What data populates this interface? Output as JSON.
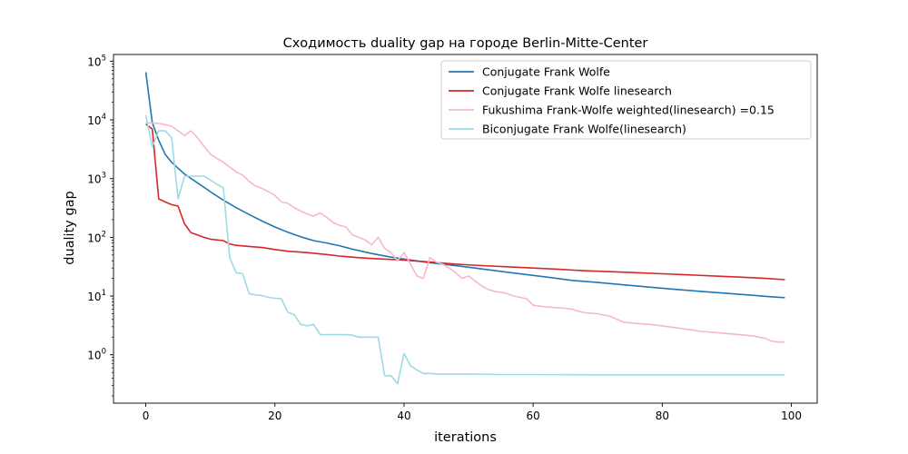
{
  "chart_data": {
    "type": "line",
    "title": "Сходимость duality gap на городе Berlin-Mitte-Center",
    "xlabel": "iterations",
    "ylabel": "duality gap",
    "x_scale": "linear",
    "y_scale": "log",
    "xlim": [
      -5,
      104
    ],
    "ylim": [
      0.15,
      130000
    ],
    "x_ticks": [
      0,
      20,
      40,
      60,
      80,
      100
    ],
    "x_tick_labels": [
      "0",
      "20",
      "40",
      "60",
      "80",
      "100"
    ],
    "y_ticks": [
      1,
      10,
      100,
      1000,
      10000,
      100000
    ],
    "y_tick_labels": [
      "10^0",
      "10^1",
      "10^2",
      "10^3",
      "10^4",
      "10^5"
    ],
    "grid": false,
    "legend_position": "top-right",
    "series": [
      {
        "name": "Conjugate Frank Wolfe",
        "color": "#1f77b4",
        "x": [
          0,
          1,
          2,
          3,
          4,
          5,
          6,
          8,
          10,
          12,
          14,
          16,
          18,
          20,
          22,
          24,
          26,
          28,
          30,
          32,
          35,
          38,
          41,
          44,
          47,
          50,
          53,
          56,
          60,
          63,
          66,
          70,
          74,
          78,
          82,
          86,
          90,
          94,
          97,
          99
        ],
        "y": [
          65000,
          9000,
          4500,
          2600,
          1900,
          1500,
          1200,
          850,
          600,
          430,
          320,
          245,
          190,
          150,
          122,
          102,
          88,
          80,
          72,
          63,
          53,
          46,
          41,
          37,
          34,
          31,
          28,
          25.5,
          22.5,
          20.5,
          18.5,
          17,
          15.5,
          14.2,
          13,
          12,
          11.1,
          10.3,
          9.7,
          9.4
        ]
      },
      {
        "name": "Conjugate Frank Wolfe linesearch",
        "color": "#d62728",
        "x": [
          0,
          1,
          2,
          3,
          4,
          5,
          6,
          7,
          8,
          9,
          10,
          12,
          13,
          14,
          16,
          18,
          20,
          22,
          25,
          28,
          30,
          33,
          36,
          40,
          44,
          48,
          52,
          56,
          60,
          64,
          68,
          72,
          76,
          80,
          84,
          88,
          92,
          96,
          99
        ],
        "y": [
          8500,
          7000,
          450,
          400,
          360,
          340,
          170,
          120,
          110,
          100,
          93,
          88,
          77,
          73,
          70,
          67,
          62,
          58,
          55,
          51,
          48,
          45,
          43,
          41,
          38,
          35,
          33,
          31.5,
          30,
          28.5,
          27,
          26,
          25,
          24,
          23,
          22,
          21,
          20,
          19
        ]
      },
      {
        "name": "Fukushima Frank-Wolfe weighted(linesearch) =0.15",
        "color": "#f7b6d2",
        "x": [
          0,
          1,
          2,
          3,
          4,
          5,
          6,
          7,
          8,
          9,
          10,
          12,
          14,
          15,
          16,
          17,
          18,
          19,
          20,
          21,
          22,
          23,
          24,
          25,
          26,
          27,
          28,
          29,
          30,
          31,
          32,
          33,
          34,
          35,
          36,
          37,
          38,
          39,
          40,
          41,
          42,
          43,
          44,
          45,
          46,
          47,
          48,
          49,
          50,
          51,
          52,
          53,
          54,
          55,
          56,
          57,
          58,
          59,
          60,
          62,
          64,
          65,
          66,
          67,
          68,
          70,
          72,
          73,
          74,
          76,
          78,
          80,
          82,
          84,
          86,
          88,
          90,
          92,
          94,
          95,
          96,
          97,
          98,
          99
        ],
        "y": [
          9000,
          8800,
          8700,
          8300,
          7800,
          6500,
          5400,
          6500,
          5000,
          3600,
          2600,
          1900,
          1300,
          1150,
          900,
          750,
          680,
          600,
          520,
          400,
          380,
          320,
          280,
          250,
          230,
          260,
          220,
          180,
          160,
          150,
          110,
          100,
          90,
          75,
          100,
          65,
          55,
          40,
          55,
          35,
          22,
          20,
          45,
          38,
          35,
          30,
          25,
          20,
          22,
          18,
          15,
          13,
          12,
          11.5,
          11,
          10,
          9.5,
          9,
          7,
          6.5,
          6.3,
          6.2,
          6,
          5.5,
          5.2,
          5,
          4.5,
          4,
          3.6,
          3.4,
          3.3,
          3.1,
          2.9,
          2.7,
          2.5,
          2.4,
          2.3,
          2.2,
          2.1,
          2,
          1.9,
          1.7,
          1.65,
          1.65
        ]
      },
      {
        "name": "Biconjugate Frank Wolfe(linesearch)",
        "color": "#9edae5",
        "x": [
          0,
          1,
          2,
          3,
          4,
          5,
          6,
          7,
          8,
          9,
          10,
          11,
          12,
          13,
          14,
          15,
          16,
          17,
          18,
          19,
          20,
          21,
          22,
          23,
          24,
          25,
          26,
          27,
          28,
          29,
          30,
          31,
          32,
          33,
          34,
          35,
          36,
          37,
          38,
          39,
          40,
          41,
          42,
          43,
          44,
          45,
          46,
          48,
          50,
          55,
          60,
          70,
          80,
          90,
          99
        ],
        "y": [
          12000,
          3500,
          6500,
          6500,
          5000,
          450,
          1100,
          1100,
          1100,
          1100,
          950,
          800,
          700,
          45,
          25,
          24,
          11,
          10.5,
          10.2,
          9.5,
          9.2,
          9,
          5.3,
          4.8,
          3.3,
          3.1,
          3.3,
          2.2,
          2.2,
          2.2,
          2.2,
          2.2,
          2.15,
          2.0,
          2.0,
          2.0,
          2.0,
          0.44,
          0.44,
          0.32,
          1.05,
          0.65,
          0.55,
          0.48,
          0.48,
          0.47,
          0.47,
          0.47,
          0.47,
          0.46,
          0.46,
          0.455,
          0.455,
          0.455,
          0.455
        ]
      }
    ]
  }
}
